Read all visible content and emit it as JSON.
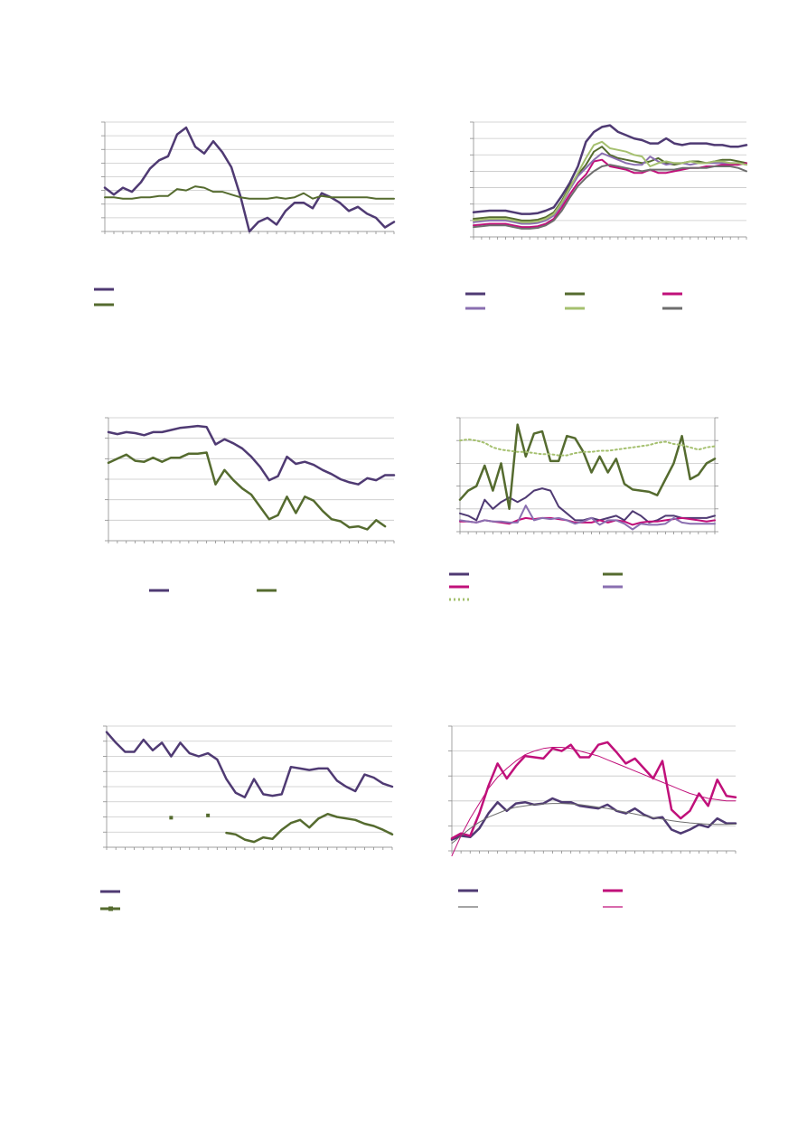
{
  "colors": {
    "purple": "#4f3a73",
    "green": "#556b2f",
    "magenta": "#c0107a",
    "lavender": "#8a6fb0",
    "light_green": "#a5c06f",
    "gray": "#6e6e6e",
    "grid": "#c8c8c8",
    "axis": "#8c8c8c"
  },
  "chart_data": [
    {
      "type": "line",
      "grid": true,
      "ylim": [
        0,
        8
      ],
      "legend": "bottom-left",
      "series": [
        {
          "key": "s1",
          "color": "purple",
          "width": 2.5,
          "values": [
            3.2,
            2.7,
            3.2,
            2.9,
            3.6,
            4.6,
            5.2,
            5.5,
            7.1,
            7.6,
            6.2,
            5.7,
            6.6,
            5.8,
            4.7,
            2.6,
            0,
            0.7,
            1.0,
            0.5,
            1.5,
            2.1,
            2.1,
            1.7,
            2.8,
            2.5,
            2.1,
            1.5,
            1.8,
            1.3,
            1.0,
            0.3,
            0.7
          ]
        },
        {
          "key": "s2",
          "color": "green",
          "width": 2,
          "values": [
            2.5,
            2.5,
            2.4,
            2.4,
            2.5,
            2.5,
            2.6,
            2.6,
            3.1,
            3.0,
            3.3,
            3.2,
            2.9,
            2.9,
            2.7,
            2.5,
            2.4,
            2.4,
            2.4,
            2.5,
            2.4,
            2.5,
            2.8,
            2.4,
            2.6,
            2.5,
            2.5,
            2.5,
            2.5,
            2.5,
            2.4,
            2.4,
            2.4
          ]
        }
      ]
    },
    {
      "type": "line",
      "grid": true,
      "ylim": [
        0,
        7
      ],
      "legend": "bottom",
      "series": [
        {
          "key": "s1",
          "color": "purple",
          "width": 2.5,
          "values": [
            1.5,
            1.55,
            1.6,
            1.6,
            1.6,
            1.5,
            1.4,
            1.4,
            1.45,
            1.6,
            1.8,
            2.5,
            3.3,
            4.3,
            5.8,
            6.4,
            6.7,
            6.8,
            6.4,
            6.2,
            6.0,
            5.9,
            5.7,
            5.7,
            6.0,
            5.7,
            5.6,
            5.7,
            5.7,
            5.7,
            5.6,
            5.6,
            5.5,
            5.5,
            5.6
          ]
        },
        {
          "key": "s2",
          "color": "green",
          "width": 2,
          "values": [
            1.1,
            1.15,
            1.2,
            1.2,
            1.2,
            1.1,
            1.0,
            1.0,
            1.05,
            1.2,
            1.5,
            2.2,
            3.1,
            3.8,
            4.4,
            5.2,
            5.5,
            5.0,
            4.8,
            4.7,
            4.6,
            4.5,
            4.6,
            4.8,
            4.5,
            4.4,
            4.5,
            4.6,
            4.6,
            4.5,
            4.6,
            4.7,
            4.7,
            4.6,
            4.5
          ]
        },
        {
          "key": "s3",
          "color": "magenta",
          "width": 2,
          "values": [
            0.7,
            0.75,
            0.8,
            0.8,
            0.8,
            0.7,
            0.6,
            0.6,
            0.65,
            0.8,
            1.1,
            1.8,
            2.6,
            3.3,
            3.8,
            4.6,
            4.7,
            4.3,
            4.2,
            4.1,
            3.9,
            3.9,
            4.1,
            3.9,
            3.9,
            4.0,
            4.1,
            4.2,
            4.2,
            4.3,
            4.3,
            4.4,
            4.4,
            4.4,
            4.5
          ]
        },
        {
          "key": "s4",
          "color": "lavender",
          "width": 2,
          "values": [
            0.9,
            0.95,
            1.0,
            1.0,
            1.0,
            0.9,
            0.8,
            0.8,
            0.85,
            1.0,
            1.3,
            2.0,
            2.9,
            3.7,
            4.2,
            4.7,
            5.1,
            4.9,
            4.7,
            4.5,
            4.4,
            4.4,
            4.9,
            4.6,
            4.4,
            4.5,
            4.5,
            4.4,
            4.5,
            4.5,
            4.5,
            4.5,
            4.5,
            4.5,
            4.4
          ]
        },
        {
          "key": "s5",
          "color": "light_green",
          "width": 2,
          "values": [
            1.0,
            1.05,
            1.1,
            1.1,
            1.1,
            1.0,
            0.9,
            0.9,
            0.95,
            1.1,
            1.4,
            2.1,
            3.0,
            3.9,
            4.8,
            5.6,
            5.8,
            5.4,
            5.3,
            5.2,
            5.0,
            4.9,
            4.3,
            4.5,
            4.6,
            4.5,
            4.5,
            4.6,
            4.5,
            4.5,
            4.6,
            4.6,
            4.5,
            4.5,
            4.4
          ]
        },
        {
          "key": "s6",
          "color": "gray",
          "width": 2,
          "values": [
            0.6,
            0.65,
            0.7,
            0.7,
            0.7,
            0.6,
            0.5,
            0.5,
            0.55,
            0.7,
            1.0,
            1.6,
            2.4,
            3.1,
            3.6,
            4.0,
            4.3,
            4.4,
            4.3,
            4.2,
            4.1,
            4.0,
            4.1,
            4.1,
            4.1,
            4.1,
            4.2,
            4.2,
            4.2,
            4.2,
            4.3,
            4.3,
            4.3,
            4.2,
            4.0
          ]
        }
      ]
    },
    {
      "type": "line",
      "grid": true,
      "ylim": [
        0,
        6
      ],
      "legend": "bottom",
      "series": [
        {
          "key": "s1",
          "color": "purple",
          "width": 2.5,
          "values": [
            5.3,
            5.2,
            5.3,
            5.25,
            5.15,
            5.3,
            5.3,
            5.4,
            5.5,
            5.55,
            5.6,
            5.55,
            4.7,
            4.95,
            4.75,
            4.5,
            4.1,
            3.6,
            2.95,
            3.15,
            4.1,
            3.75,
            3.85,
            3.7,
            3.45,
            3.25,
            3.0,
            2.85,
            2.75,
            3.05,
            2.95,
            3.2,
            3.2
          ]
        },
        {
          "key": "s2",
          "color": "green",
          "width": 2.5,
          "values": [
            3.8,
            4.0,
            4.2,
            3.9,
            3.85,
            4.05,
            3.85,
            4.05,
            4.05,
            4.25,
            4.25,
            4.3,
            2.75,
            3.45,
            2.95,
            2.55,
            2.25,
            1.65,
            1.05,
            1.25,
            2.15,
            1.35,
            2.15,
            1.95,
            1.45,
            1.05,
            0.95,
            0.65,
            0.7,
            0.55,
            1.0,
            0.7
          ]
        }
      ]
    },
    {
      "type": "line",
      "grid": true,
      "ylim": [
        0,
        5
      ],
      "legend": "bottom",
      "series": [
        {
          "key": "s1",
          "color": "purple",
          "width": 2,
          "values": [
            0.8,
            0.7,
            0.5,
            1.4,
            1.0,
            1.3,
            1.5,
            1.3,
            1.5,
            1.8,
            1.9,
            1.8,
            1.1,
            0.8,
            0.5,
            0.5,
            0.6,
            0.5,
            0.6,
            0.7,
            0.5,
            0.9,
            0.7,
            0.4,
            0.5,
            0.7,
            0.7,
            0.6,
            0.6,
            0.6,
            0.6,
            0.7
          ]
        },
        {
          "key": "s2",
          "color": "green",
          "width": 2.5,
          "values": [
            1.4,
            1.8,
            2.0,
            2.9,
            1.8,
            3.0,
            1.0,
            4.7,
            3.3,
            4.3,
            4.4,
            3.1,
            3.1,
            4.2,
            4.1,
            3.5,
            2.6,
            3.3,
            2.6,
            3.2,
            2.1,
            1.85,
            1.8,
            1.75,
            1.6,
            2.3,
            3.0,
            4.2,
            2.3,
            2.5,
            3.0,
            3.2
          ]
        },
        {
          "key": "s3",
          "color": "magenta",
          "width": 2,
          "values": [
            0.45,
            0.45,
            0.4,
            0.5,
            0.45,
            0.4,
            0.35,
            0.5,
            0.6,
            0.55,
            0.6,
            0.6,
            0.55,
            0.5,
            0.4,
            0.4,
            0.4,
            0.5,
            0.4,
            0.5,
            0.45,
            0.3,
            0.4,
            0.45,
            0.45,
            0.5,
            0.55,
            0.6,
            0.55,
            0.5,
            0.45,
            0.5
          ]
        },
        {
          "key": "s4",
          "color": "lavender",
          "width": 2,
          "values": [
            0.5,
            0.45,
            0.4,
            0.5,
            0.45,
            0.45,
            0.4,
            0.4,
            1.15,
            0.5,
            0.6,
            0.55,
            0.6,
            0.5,
            0.35,
            0.45,
            0.6,
            0.3,
            0.5,
            0.5,
            0.35,
            0.1,
            0.35,
            0.3,
            0.3,
            0.35,
            0.6,
            0.4,
            0.35,
            0.35,
            0.35,
            0.35
          ]
        },
        {
          "key": "s5",
          "color": "light_green",
          "width": 2,
          "dash": "2,3",
          "values": [
            4.0,
            4.05,
            4.0,
            3.9,
            3.7,
            3.6,
            3.55,
            3.5,
            3.5,
            3.45,
            3.4,
            3.4,
            3.35,
            3.35,
            3.45,
            3.5,
            3.5,
            3.55,
            3.55,
            3.6,
            3.65,
            3.7,
            3.75,
            3.8,
            3.9,
            3.95,
            3.85,
            3.8,
            3.7,
            3.6,
            3.7,
            3.75
          ]
        }
      ]
    },
    {
      "type": "line",
      "grid": true,
      "ylim": [
        0,
        8
      ],
      "legend": "bottom-left",
      "series": [
        {
          "key": "s1",
          "color": "purple",
          "width": 2.5,
          "values": [
            7.6,
            6.9,
            6.3,
            6.3,
            7.1,
            6.4,
            6.9,
            6.0,
            6.9,
            6.2,
            6.0,
            6.2,
            5.8,
            4.5,
            3.6,
            3.3,
            4.5,
            3.5,
            3.4,
            3.5,
            5.3,
            5.2,
            5.1,
            5.2,
            5.2,
            4.4,
            4.0,
            3.7,
            4.8,
            4.6,
            4.2,
            4.0
          ]
        },
        {
          "key": "s2",
          "color": "green",
          "width": 2.5,
          "values": [
            null,
            null,
            null,
            null,
            null,
            null,
            null,
            1.95,
            null,
            null,
            null,
            2.1,
            null,
            0.95,
            0.85,
            0.5,
            0.35,
            0.65,
            0.55,
            1.15,
            1.6,
            1.8,
            1.3,
            1.9,
            2.2,
            2.0,
            1.9,
            1.8,
            1.55,
            1.4,
            1.15,
            0.85
          ]
        }
      ]
    },
    {
      "type": "line",
      "grid": true,
      "ylim": [
        0,
        5
      ],
      "legend": "bottom",
      "series": [
        {
          "key": "s1",
          "color": "purple",
          "width": 2.5,
          "values": [
            0.45,
            0.6,
            0.55,
            0.9,
            1.5,
            1.95,
            1.6,
            1.9,
            1.95,
            1.85,
            1.9,
            2.1,
            1.95,
            1.95,
            1.8,
            1.75,
            1.7,
            1.85,
            1.6,
            1.5,
            1.7,
            1.45,
            1.3,
            1.35,
            0.85,
            0.7,
            0.85,
            1.05,
            0.95,
            1.3,
            1.1,
            1.1
          ]
        },
        {
          "key": "s2",
          "color": "magenta",
          "width": 2.5,
          "values": [
            0.5,
            0.7,
            0.6,
            1.5,
            2.6,
            3.5,
            2.9,
            3.4,
            3.8,
            3.75,
            3.7,
            4.1,
            4.0,
            4.25,
            3.75,
            3.75,
            4.25,
            4.35,
            3.95,
            3.5,
            3.7,
            3.3,
            2.9,
            3.6,
            1.65,
            1.3,
            1.6,
            2.3,
            1.8,
            2.85,
            2.2,
            2.15
          ]
        },
        {
          "key": "s3",
          "color": "gray",
          "width": 1,
          "values": [
            0.3,
            0.6,
            0.9,
            1.15,
            1.35,
            1.5,
            1.65,
            1.75,
            1.8,
            1.85,
            1.88,
            1.9,
            1.9,
            1.88,
            1.85,
            1.8,
            1.75,
            1.7,
            1.62,
            1.55,
            1.48,
            1.4,
            1.33,
            1.27,
            1.21,
            1.16,
            1.12,
            1.09,
            1.07,
            1.06,
            1.06,
            1.07
          ]
        },
        {
          "key": "s4",
          "color": "magenta",
          "width": 1,
          "values": [
            -0.2,
            0.6,
            1.3,
            1.9,
            2.5,
            2.95,
            3.3,
            3.6,
            3.85,
            4.0,
            4.1,
            4.15,
            4.15,
            4.1,
            4.0,
            3.9,
            3.8,
            3.65,
            3.5,
            3.35,
            3.2,
            3.05,
            2.9,
            2.75,
            2.6,
            2.45,
            2.3,
            2.2,
            2.1,
            2.05,
            2.0,
            2.0
          ]
        }
      ]
    }
  ]
}
